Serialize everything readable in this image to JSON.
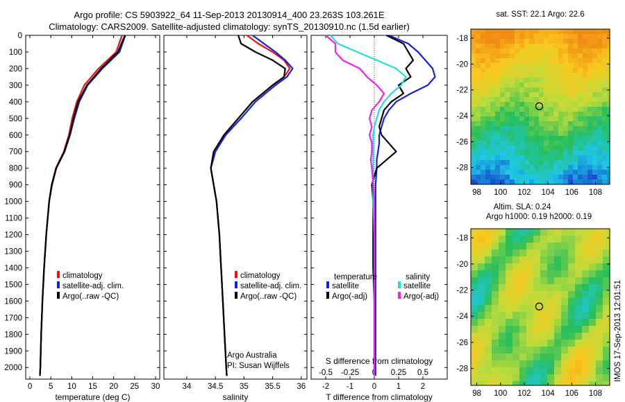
{
  "header": {
    "line1": "Argo profile: CS 5903922_64 11-Sep-2013 20130914_400 23.263S 103.261E",
    "line2": "Climatology: CARS2009. Satellite-adjusted climatology: synTS_20130910.nc (1.5d earlier)"
  },
  "colors": {
    "red": "#ee1111",
    "blue": "#1122dd",
    "black": "#000000",
    "cyan": "#22dddd",
    "magenta": "#ee22ee"
  },
  "footer": {
    "left_org": "Argo Australia",
    "left_pi": "PI: Susan Wijffels",
    "side_stamp": "IMOS 17-Sep-2013 12:01:51"
  },
  "chart_data": [
    {
      "type": "line",
      "xlabel": "temperature (deg C)",
      "ylabel": "",
      "xlim": [
        -1,
        31
      ],
      "ylim": [
        2070,
        0
      ],
      "xticks": [
        0,
        5,
        10,
        15,
        20,
        25,
        30
      ],
      "yticks": [
        0,
        100,
        200,
        300,
        400,
        500,
        600,
        700,
        800,
        900,
        1000,
        1100,
        1200,
        1300,
        1400,
        1500,
        1600,
        1700,
        1800,
        1900,
        2000
      ],
      "depth": [
        0,
        100,
        200,
        300,
        400,
        500,
        600,
        700,
        800,
        900,
        1000,
        1200,
        1400,
        1600,
        1800,
        2000,
        2050
      ],
      "series": [
        {
          "name": "climatology",
          "color": "red",
          "values": [
            22.0,
            20.6,
            16.4,
            13.0,
            11.2,
            10.1,
            9.3,
            8.1,
            6.2,
            5.2,
            4.6,
            3.9,
            3.4,
            3.0,
            2.7,
            2.5,
            2.4
          ]
        },
        {
          "name": "satellite-adj. clim.",
          "color": "blue",
          "values": [
            22.8,
            21.4,
            17.3,
            13.8,
            11.8,
            10.6,
            9.6,
            8.3,
            6.3,
            5.3,
            4.6,
            3.9,
            3.4,
            3.0,
            2.7,
            2.5,
            2.4
          ]
        },
        {
          "name": "Argo(..raw -QC)",
          "color": "black",
          "values": [
            22.7,
            21.0,
            17.0,
            13.6,
            11.5,
            10.4,
            9.5,
            8.2,
            6.3,
            5.2,
            4.6,
            3.9,
            3.4,
            3.0,
            2.7,
            2.5,
            2.4
          ]
        }
      ],
      "legend": [
        "climatology",
        "satellite-adj. clim.",
        "Argo(..raw -QC)"
      ]
    },
    {
      "type": "line",
      "xlabel": "salinity",
      "ylabel": "",
      "xlim": [
        33.6,
        36.1
      ],
      "ylim": [
        2070,
        0
      ],
      "xticks": [
        34,
        34.5,
        35,
        35.5,
        36
      ],
      "depth": [
        0,
        50,
        100,
        150,
        200,
        250,
        300,
        400,
        500,
        600,
        700,
        800,
        900,
        1000,
        1200,
        1400,
        1600,
        1800,
        2000,
        2050
      ],
      "series": [
        {
          "name": "climatology",
          "color": "red",
          "values": [
            35.05,
            35.25,
            35.5,
            35.7,
            35.8,
            35.7,
            35.5,
            35.15,
            34.9,
            34.65,
            34.47,
            34.42,
            34.47,
            34.52,
            34.57,
            34.6,
            34.63,
            34.66,
            34.69,
            34.7
          ]
        },
        {
          "name": "satellite-adj. clim.",
          "color": "blue",
          "values": [
            35.15,
            35.35,
            35.55,
            35.72,
            35.85,
            35.75,
            35.55,
            35.2,
            34.95,
            34.68,
            34.5,
            34.42,
            34.47,
            34.52,
            34.57,
            34.6,
            34.63,
            34.66,
            34.69,
            34.7
          ]
        },
        {
          "name": "Argo(..raw -QC)",
          "color": "black",
          "values": [
            34.9,
            34.95,
            35.2,
            35.5,
            35.72,
            35.7,
            35.5,
            35.15,
            34.9,
            34.65,
            34.47,
            34.42,
            34.47,
            34.52,
            34.57,
            34.6,
            34.63,
            34.66,
            34.69,
            34.7
          ]
        }
      ],
      "legend": [
        "climatology",
        "satellite-adj. clim.",
        "Argo(..raw -QC)"
      ],
      "annotation": [
        "Argo Australia",
        "PI: Susan Wijffels"
      ]
    },
    {
      "type": "line",
      "xlabel": "T difference from climatology",
      "xlabel_top": "S difference from climatology",
      "xlim": [
        -2.6,
        3.0
      ],
      "ylim": [
        2070,
        0
      ],
      "xticks": [
        -2,
        -1,
        0,
        1,
        2
      ],
      "sticks": [
        -0.5,
        -0.25,
        0,
        0.25,
        0.5
      ],
      "slabels": [
        "-0.5",
        "-0.25",
        "0",
        "0.25",
        "0.5"
      ],
      "depth": [
        0,
        50,
        100,
        150,
        200,
        250,
        300,
        350,
        400,
        450,
        500,
        550,
        600,
        650,
        700,
        750,
        800,
        900,
        1000,
        1200,
        1400,
        1600,
        1800,
        2000,
        2050
      ],
      "series": [
        {
          "name": "satellite",
          "group": "temperature",
          "color": "blue",
          "values": [
            0.6,
            1.4,
            1.8,
            2.1,
            2.4,
            2.5,
            2.2,
            1.5,
            0.9,
            0.6,
            0.4,
            0.3,
            0.2,
            0.2,
            0.15,
            0.1,
            0.1,
            0.05,
            0.05,
            0.05,
            0.05,
            0.05,
            0.05,
            0.05,
            0.05
          ]
        },
        {
          "name": "Argo(-adj)",
          "group": "temperature",
          "color": "black",
          "values": [
            0.5,
            1.2,
            1.4,
            1.6,
            1.3,
            1.5,
            1.0,
            1.2,
            0.7,
            0.4,
            0.3,
            0.2,
            0.3,
            0.6,
            0.9,
            0.5,
            0.1,
            -0.1,
            -0.05,
            -0.05,
            -0.05,
            0.0,
            0.0,
            0.0,
            0.0
          ]
        },
        {
          "name": "satellite",
          "group": "salinity",
          "color": "cyan",
          "values": [
            -1.8,
            -1.5,
            -0.7,
            0.1,
            0.9,
            1.3,
            1.1,
            0.7,
            0.4,
            0.2,
            0.1,
            0.0,
            -0.05,
            -0.05,
            -0.05,
            -0.05,
            -0.05,
            -0.05,
            -0.05,
            0.0,
            0.0,
            0.0,
            0.0,
            0.0,
            0.0
          ]
        },
        {
          "name": "Argo(-adj)",
          "group": "salinity",
          "color": "magenta",
          "values": [
            -2.0,
            -1.6,
            -1.6,
            -1.3,
            -0.6,
            -0.3,
            0.1,
            0.4,
            0.2,
            -0.1,
            -0.2,
            -0.1,
            -0.2,
            -0.1,
            -0.1,
            -0.15,
            -0.1,
            -0.05,
            0.0,
            0.0,
            0.0,
            0.0,
            0.0,
            0.0,
            0.0
          ]
        }
      ],
      "legend_temperature_title": "temperature",
      "legend_salinity_title": "salinity"
    },
    {
      "type": "heatmap",
      "title": "sat. SST: 22.1  Argo: 22.6",
      "xticks": [
        98,
        100,
        102,
        104,
        106,
        108
      ],
      "yticks": [
        -18,
        -20,
        -22,
        -24,
        -26,
        -28
      ],
      "xlim": [
        97.5,
        109.2
      ],
      "ylim": [
        -29.3,
        -17.3
      ],
      "marker": {
        "lon": 103.26,
        "lat": -23.26
      }
    },
    {
      "type": "heatmap",
      "title_line1": "Altim. SLA: 0.24",
      "title_line2": "Argo h1000: 0.19  h2000: 0.19",
      "xticks": [
        98,
        100,
        102,
        104,
        106,
        108
      ],
      "yticks": [
        -18,
        -20,
        -22,
        -24,
        -26,
        -28
      ],
      "xlim": [
        97.5,
        109.2
      ],
      "ylim": [
        -29.3,
        -17.3
      ],
      "marker": {
        "lon": 103.26,
        "lat": -23.26
      }
    }
  ]
}
